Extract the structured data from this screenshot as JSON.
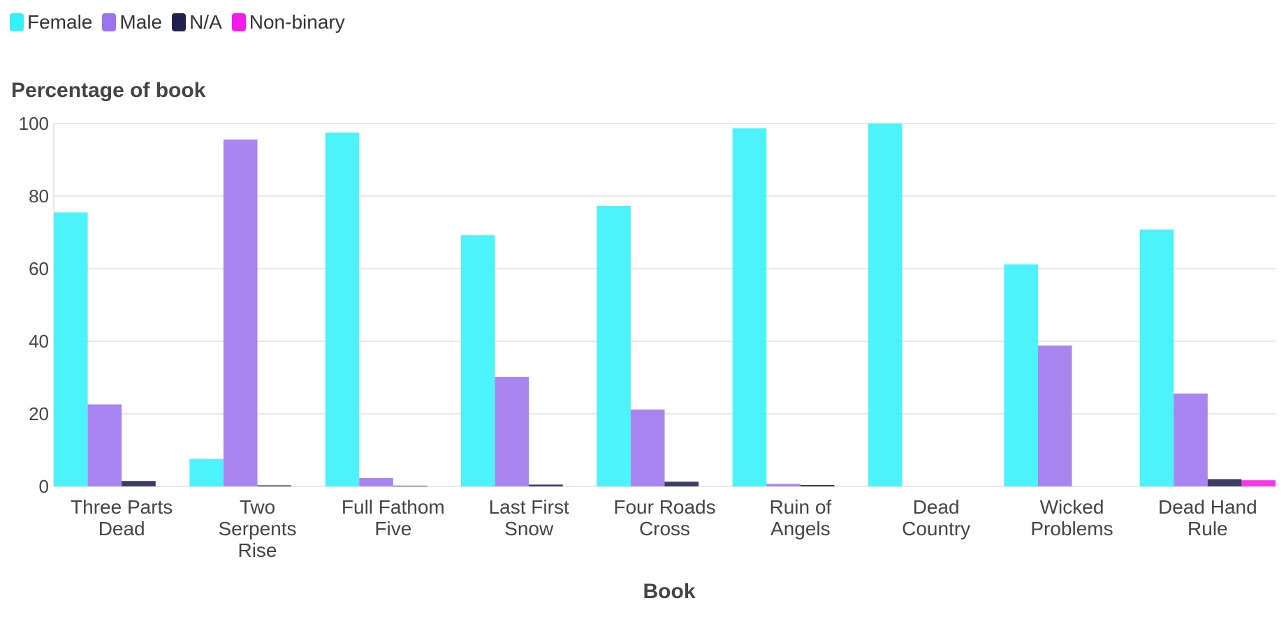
{
  "legend": {
    "items": [
      {
        "label": "Female",
        "color": "#33f1f9"
      },
      {
        "label": "Male",
        "color": "#9d74f0"
      },
      {
        "label": "N/A",
        "color": "#23204f"
      },
      {
        "label": "Non-binary",
        "color": "#f21de6"
      }
    ]
  },
  "chart_data": {
    "type": "bar",
    "ylabel": "Percentage of book",
    "xlabel": "Book",
    "ylim": [
      0,
      100
    ],
    "yticks": [
      0,
      20,
      40,
      60,
      80,
      100
    ],
    "grid": true,
    "legend_position": "top-left",
    "categories": [
      [
        "Three Parts",
        "Dead"
      ],
      [
        "Two",
        "Serpents",
        "Rise"
      ],
      [
        "Full Fathom",
        "Five"
      ],
      [
        "Last First",
        "Snow"
      ],
      [
        "Four Roads",
        "Cross"
      ],
      [
        "Ruin of",
        "Angels"
      ],
      [
        "Dead",
        "Country"
      ],
      [
        "Wicked",
        "Problems"
      ],
      [
        "Dead Hand",
        "Rule"
      ]
    ],
    "series": [
      {
        "name": "Female",
        "color": "#33f1f9",
        "values": [
          75.5,
          7.5,
          97.5,
          69.2,
          77.3,
          98.7,
          100,
          61.2,
          70.8
        ]
      },
      {
        "name": "Male",
        "color": "#9d74f0",
        "values": [
          22.6,
          95.6,
          2.3,
          30.2,
          21.2,
          0.7,
          0,
          38.8,
          25.6
        ]
      },
      {
        "name": "N/A",
        "color": "#23204f",
        "values": [
          1.5,
          0.3,
          0.2,
          0.5,
          1.3,
          0.4,
          0,
          0,
          2.0
        ]
      },
      {
        "name": "Non-binary",
        "color": "#f21de6",
        "values": [
          0,
          0,
          0,
          0,
          0,
          0,
          0,
          0,
          1.7
        ]
      }
    ]
  }
}
